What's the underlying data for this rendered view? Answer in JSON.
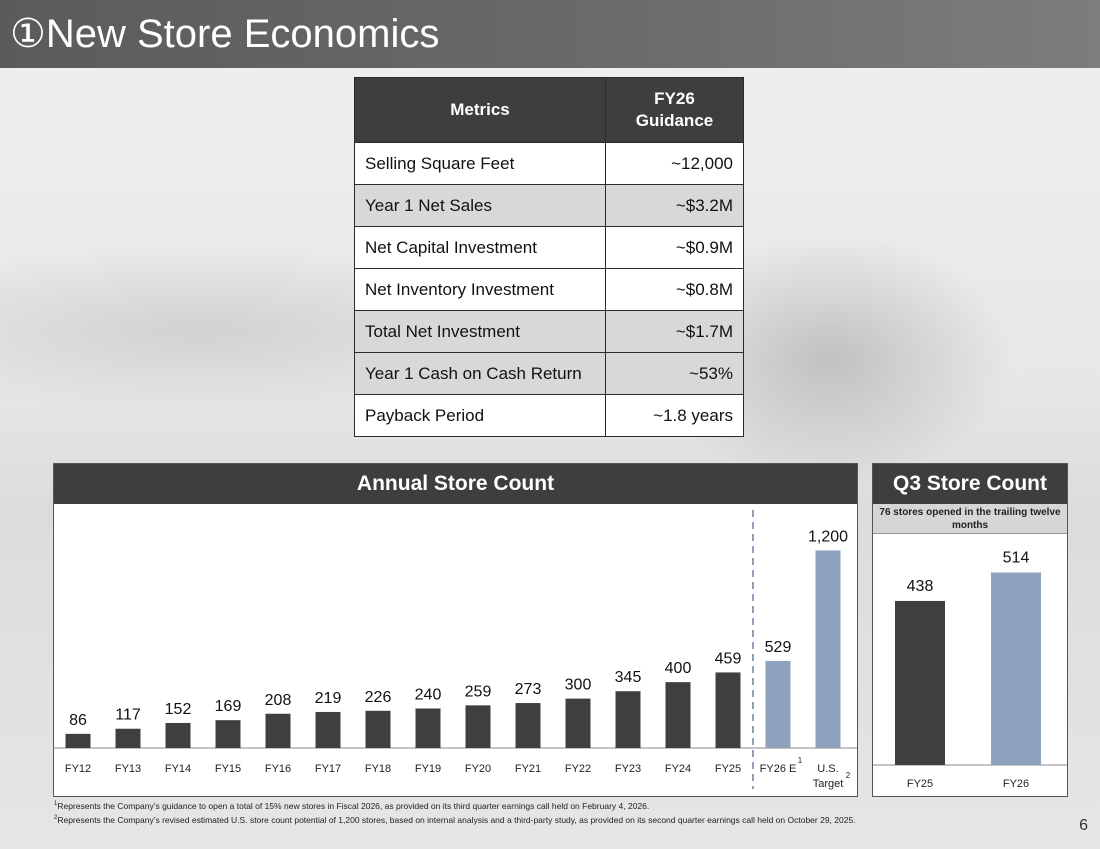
{
  "title": "①New Store Economics",
  "metrics_table": {
    "header_metric": "Metrics",
    "header_guidance_line1": "FY26",
    "header_guidance_line2": "Guidance",
    "rows": [
      {
        "label": "Selling Square Feet",
        "value": "~12,000"
      },
      {
        "label": "Year 1 Net Sales",
        "value": "~$3.2M"
      },
      {
        "label": "Net Capital Investment",
        "value": "~$0.9M"
      },
      {
        "label": "Net Inventory Investment",
        "value": "~$0.8M"
      },
      {
        "label": "Total Net Investment",
        "value": "~$1.7M"
      },
      {
        "label": "Year 1 Cash on Cash Return",
        "value": "~53%"
      },
      {
        "label": "Payback Period",
        "value": "~1.8 years"
      }
    ]
  },
  "annual_chart": {
    "header": "Annual Store Count",
    "note_fy26e": "1",
    "note_target": "2"
  },
  "q3_chart": {
    "header": "Q3 Store Count",
    "subheader": "76 stores opened in the trailing twelve months"
  },
  "chart_data": [
    {
      "type": "bar",
      "title": "Annual Store Count",
      "categories": [
        "FY12",
        "FY13",
        "FY14",
        "FY15",
        "FY16",
        "FY17",
        "FY18",
        "FY19",
        "FY20",
        "FY21",
        "FY22",
        "FY23",
        "FY24",
        "FY25",
        "FY26 E",
        "U.S. Target"
      ],
      "values": [
        86,
        117,
        152,
        169,
        208,
        219,
        226,
        240,
        259,
        273,
        300,
        345,
        400,
        459,
        529,
        1200
      ],
      "value_labels": [
        "86",
        "117",
        "152",
        "169",
        "208",
        "219",
        "226",
        "240",
        "259",
        "273",
        "300",
        "345",
        "400",
        "459",
        "529",
        "1,200"
      ],
      "colors": [
        "#3f3f3f",
        "#3f3f3f",
        "#3f3f3f",
        "#3f3f3f",
        "#3f3f3f",
        "#3f3f3f",
        "#3f3f3f",
        "#3f3f3f",
        "#3f3f3f",
        "#3f3f3f",
        "#3f3f3f",
        "#3f3f3f",
        "#3f3f3f",
        "#3f3f3f",
        "#8ea2bd",
        "#8ea2bd"
      ],
      "ylim": [
        0,
        1300
      ],
      "divider_after": "FY25"
    },
    {
      "type": "bar",
      "title": "Q3 Store Count",
      "categories": [
        "FY25",
        "FY26"
      ],
      "values": [
        438,
        514
      ],
      "value_labels": [
        "438",
        "514"
      ],
      "colors": [
        "#3f3f3f",
        "#8ea2bd"
      ],
      "ylim": [
        0,
        590
      ]
    }
  ],
  "footnotes": {
    "f1_mark": "1",
    "f1_text": "Represents the Company’s guidance to open a total of 15% new stores in Fiscal 2026, as provided on its third quarter earnings call held on February 4, 2026.",
    "f2_mark": "2",
    "f2_text": "Represents the Company’s revised estimated U.S. store count potential of 1,200 stores, based on internal analysis and a third-party study, as provided on its second quarter earnings call held on October 29, 2025."
  },
  "page_number": "6"
}
